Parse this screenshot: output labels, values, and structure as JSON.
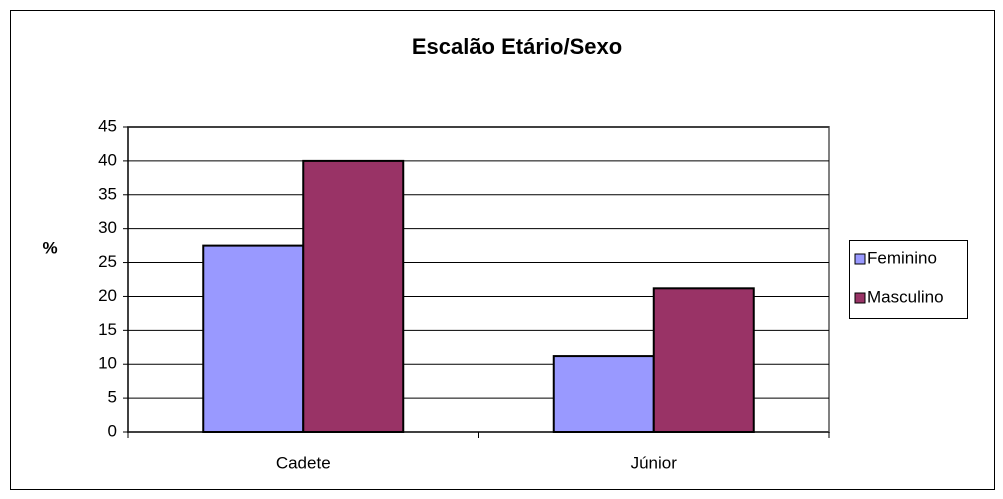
{
  "chart_data": {
    "type": "bar",
    "title": "Escalão Etário/Sexo",
    "y_label": "%",
    "categories": [
      "Cadete",
      "Júnior"
    ],
    "series": [
      {
        "name": "Feminino",
        "color": "#9999ff",
        "values": [
          27.5,
          11.2
        ]
      },
      {
        "name": "Masculino",
        "color": "#993366",
        "values": [
          40,
          21.2
        ]
      }
    ],
    "ylim": [
      0,
      45
    ],
    "yticks": [
      0,
      5,
      10,
      15,
      20,
      25,
      30,
      35,
      40,
      45
    ],
    "grid": true,
    "legend": "right"
  }
}
